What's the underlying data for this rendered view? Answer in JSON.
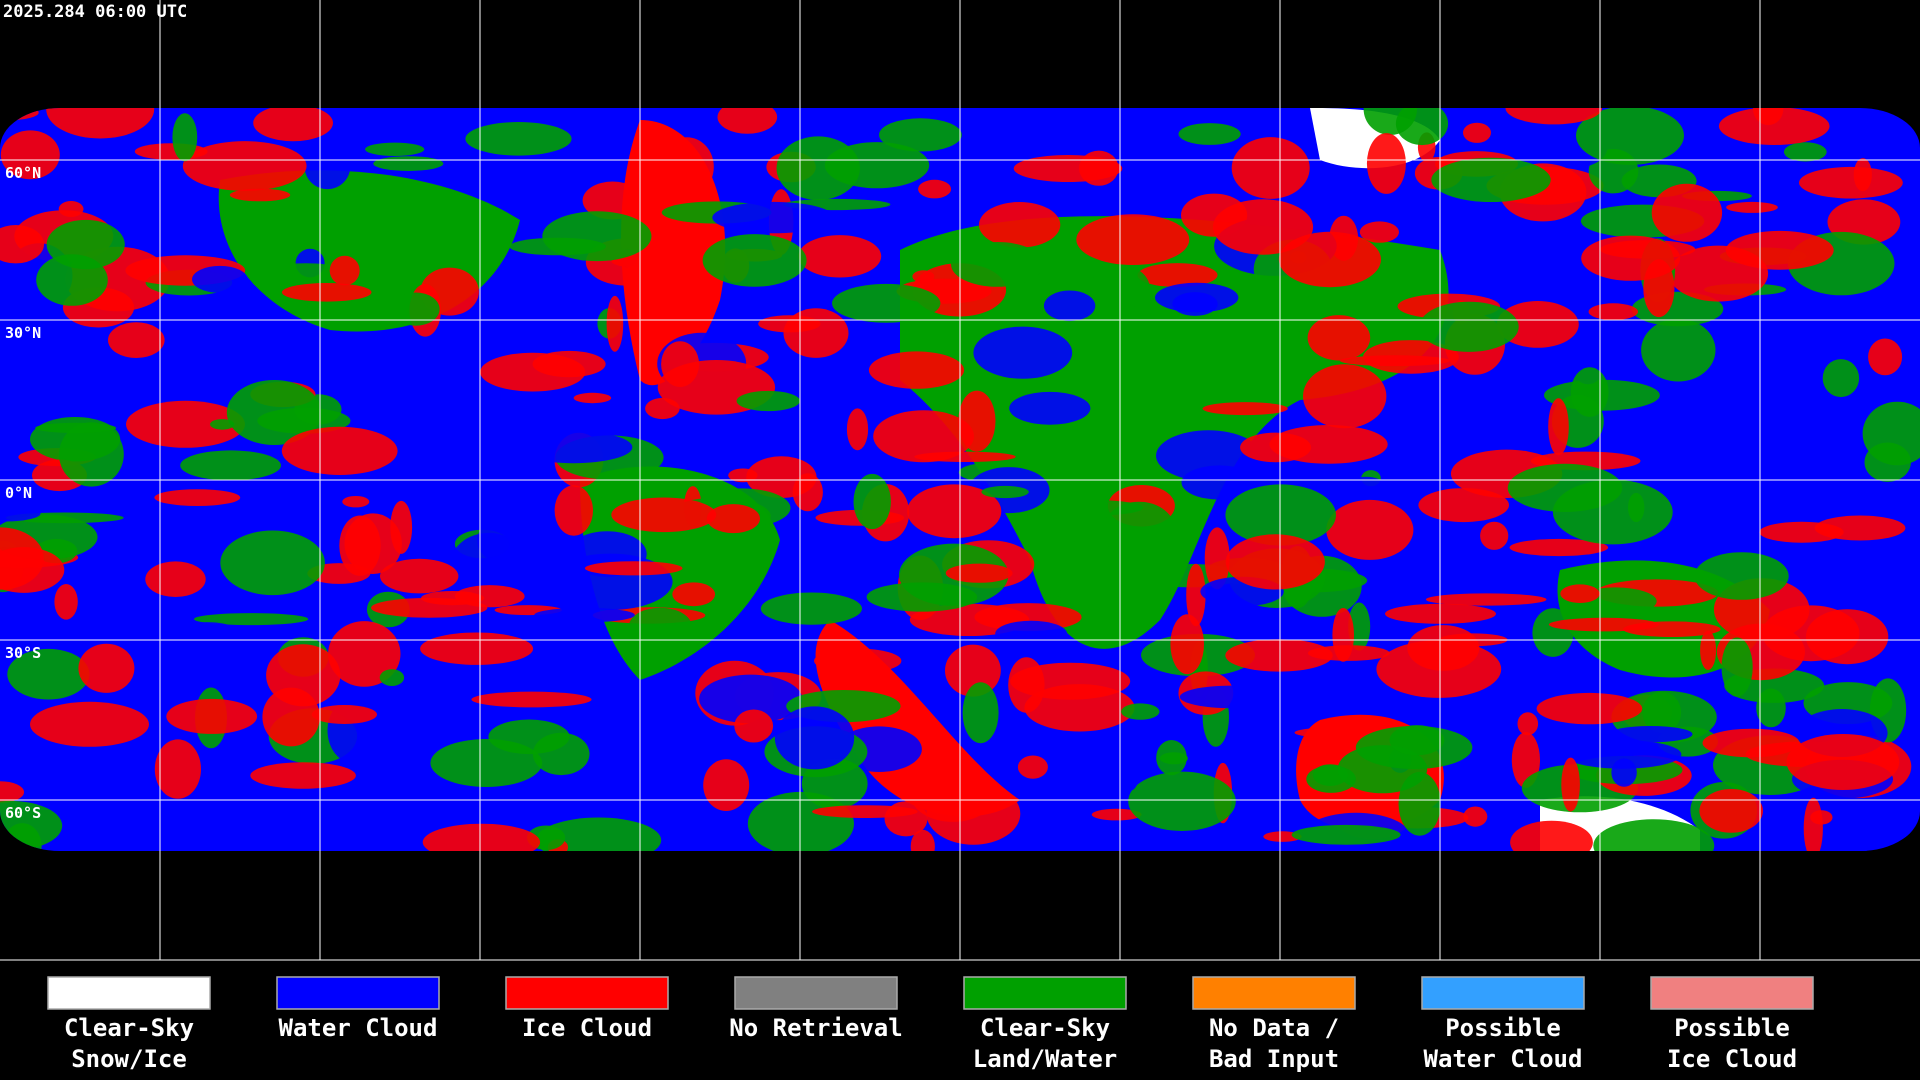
{
  "header": {
    "timestamp": "2025.284 06:00 UTC"
  },
  "map": {
    "latitude_labels": [
      "60°N",
      "30°N",
      "0°N",
      "30°S",
      "60°S"
    ]
  },
  "legend": {
    "items": [
      {
        "label": [
          "Clear-Sky",
          "Snow/Ice"
        ],
        "color": "#ffffff"
      },
      {
        "label": [
          "Water Cloud"
        ],
        "color": "#0000ff"
      },
      {
        "label": [
          "Ice Cloud"
        ],
        "color": "#ff0000"
      },
      {
        "label": [
          "No Retrieval"
        ],
        "color": "#808080"
      },
      {
        "label": [
          "Clear-Sky",
          "Land/Water"
        ],
        "color": "#00a000"
      },
      {
        "label": [
          "No Data /",
          "Bad Input"
        ],
        "color": "#ff8000"
      },
      {
        "label": [
          "Possible",
          "Water Cloud"
        ],
        "color": "#33a0ff"
      },
      {
        "label": [
          "Possible",
          "Ice Cloud"
        ],
        "color": "#f08080"
      }
    ]
  }
}
